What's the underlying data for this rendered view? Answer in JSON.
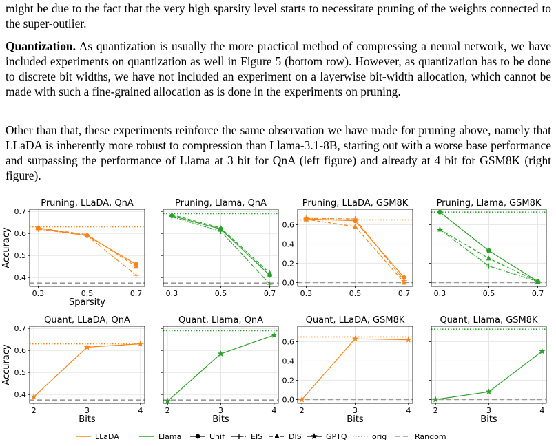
{
  "text": {
    "para0": "might be due to the fact that the very high sparsity level starts to necessitate pruning of the weights connected to the super-outlier.",
    "para1_heading": "Quantization.",
    "para1_body": " As quantization is usually the more practical method of compressing a neural network, we have included experiments on quantization as well in Figure 5 (bottom row). However, as quantization has to be done to discrete bit widths, we have not included an experiment on a layerwise bit-width allocation, which cannot be made with such a fine-grained allocation as is done in the experiments on pruning.",
    "para2": "Other than that, these experiments reinforce the same observation we have made for pruning above, namely that LLaDA is inherently more robust to compression than Llama-3.1-8B, starting out with a worse base performance and surpassing the performance of Llama at 3 bit for QnA (left figure) and already at 4 bit for GSM8K (right figure)."
  },
  "colors": {
    "llada": "#f58518",
    "llama": "#2ca02c",
    "random": "#999999",
    "grid": "#e6e6e6"
  },
  "legend": [
    {
      "label": "LLaDA",
      "kind": "line",
      "color": "#f58518"
    },
    {
      "label": "Llama",
      "kind": "line",
      "color": "#2ca02c"
    },
    {
      "label": "Unif",
      "kind": "marker",
      "marker": "circle",
      "dash": "solid"
    },
    {
      "label": "EIS",
      "kind": "marker",
      "marker": "plus",
      "dash": "dashdot"
    },
    {
      "label": "DIS",
      "kind": "marker",
      "marker": "triangle",
      "dash": "dashed"
    },
    {
      "label": "GPTQ",
      "kind": "marker",
      "marker": "star",
      "dash": "solid"
    },
    {
      "label": "orig",
      "kind": "dotted"
    },
    {
      "label": "Random",
      "kind": "random"
    }
  ],
  "chart_data": [
    {
      "type": "line",
      "title": "Pruning, LLaDA, QnA",
      "xlabel": "Sparsity",
      "ylabel": "Accuracy",
      "xlim": [
        0.265,
        0.735
      ],
      "ylim": [
        0.36,
        0.71
      ],
      "xticks": [
        0.3,
        0.5,
        0.7
      ],
      "xticklabels": [
        "0.3",
        "0.5",
        "0.7"
      ],
      "yticks": [
        0.4,
        0.5,
        0.6,
        0.7
      ],
      "yticklabels": [
        "0.4",
        "0.5",
        "0.6",
        "0.7"
      ],
      "model": "llada",
      "orig": 0.63,
      "random": 0.375,
      "series": [
        {
          "name": "Unif",
          "marker": "circle",
          "dash": "solid",
          "x": [
            0.3,
            0.5,
            0.7
          ],
          "y": [
            0.625,
            0.59,
            0.46
          ]
        },
        {
          "name": "EIS",
          "marker": "plus",
          "dash": "dashdot",
          "x": [
            0.3,
            0.5,
            0.7
          ],
          "y": [
            0.62,
            0.59,
            0.41
          ]
        },
        {
          "name": "DIS",
          "marker": "triangle",
          "dash": "dashed",
          "x": [
            0.3,
            0.5,
            0.7
          ],
          "y": [
            0.625,
            0.595,
            0.45
          ]
        }
      ]
    },
    {
      "type": "line",
      "title": "Pruning, Llama, QnA",
      "xlabel": "",
      "ylabel": "",
      "xlim": [
        0.265,
        0.735
      ],
      "ylim": [
        0.36,
        0.71
      ],
      "xticks": [
        0.3,
        0.5,
        0.7
      ],
      "xticklabels": [
        "0.3",
        "0.5",
        "0.7"
      ],
      "yticks": [
        0.4,
        0.5,
        0.6,
        0.7
      ],
      "yticklabels": [],
      "model": "llama",
      "orig": 0.69,
      "random": 0.375,
      "series": [
        {
          "name": "Unif",
          "marker": "circle",
          "dash": "solid",
          "x": [
            0.3,
            0.5,
            0.7
          ],
          "y": [
            0.68,
            0.62,
            0.41
          ]
        },
        {
          "name": "EIS",
          "marker": "plus",
          "dash": "dashdot",
          "x": [
            0.3,
            0.5,
            0.7
          ],
          "y": [
            0.675,
            0.61,
            0.37
          ]
        },
        {
          "name": "DIS",
          "marker": "triangle",
          "dash": "dashed",
          "x": [
            0.3,
            0.5,
            0.7
          ],
          "y": [
            0.685,
            0.625,
            0.42
          ]
        }
      ]
    },
    {
      "type": "line",
      "title": "Pruning, LLaDA, GSM8K",
      "xlabel": "",
      "ylabel": "",
      "xlim": [
        0.265,
        0.735
      ],
      "ylim": [
        -0.04,
        0.76
      ],
      "xticks": [
        0.3,
        0.5,
        0.7
      ],
      "xticklabels": [
        "0.3",
        "0.5",
        "0.7"
      ],
      "yticks": [
        0.0,
        0.2,
        0.4,
        0.6
      ],
      "yticklabels": [
        "0.0",
        "0.2",
        "0.4",
        "0.6"
      ],
      "model": "llada",
      "orig": 0.65,
      "random": 0.0,
      "series": [
        {
          "name": "Unif",
          "marker": "circle",
          "dash": "solid",
          "x": [
            0.3,
            0.5,
            0.7
          ],
          "y": [
            0.66,
            0.64,
            0.05
          ]
        },
        {
          "name": "EIS",
          "marker": "plus",
          "dash": "dashdot",
          "x": [
            0.3,
            0.5,
            0.7
          ],
          "y": [
            0.665,
            0.66,
            0.02
          ]
        },
        {
          "name": "DIS",
          "marker": "triangle",
          "dash": "dashed",
          "x": [
            0.3,
            0.5,
            0.7
          ],
          "y": [
            0.655,
            0.58,
            0.0
          ]
        }
      ]
    },
    {
      "type": "line",
      "title": "Pruning, Llama, GSM8K",
      "xlabel": "",
      "ylabel": "",
      "xlim": [
        0.265,
        0.735
      ],
      "ylim": [
        -0.04,
        0.76
      ],
      "xticks": [
        0.3,
        0.5,
        0.7
      ],
      "xticklabels": [
        "0.3",
        "0.5",
        "0.7"
      ],
      "yticks": [
        0.0,
        0.2,
        0.4,
        0.6
      ],
      "yticklabels": [],
      "model": "llama",
      "orig": 0.73,
      "random": 0.0,
      "series": [
        {
          "name": "Unif",
          "marker": "circle",
          "dash": "solid",
          "x": [
            0.3,
            0.5,
            0.7
          ],
          "y": [
            0.73,
            0.33,
            0.01
          ]
        },
        {
          "name": "EIS",
          "marker": "plus",
          "dash": "dashdot",
          "x": [
            0.3,
            0.5,
            0.7
          ],
          "y": [
            0.55,
            0.17,
            0.01
          ]
        },
        {
          "name": "DIS",
          "marker": "triangle",
          "dash": "dashed",
          "x": [
            0.3,
            0.5,
            0.7
          ],
          "y": [
            0.55,
            0.25,
            0.01
          ]
        }
      ]
    },
    {
      "type": "line",
      "title": "Quant, LLaDA, QnA",
      "xlabel": "Bits",
      "ylabel": "Accuracy",
      "xlim": [
        1.92,
        4.08
      ],
      "ylim": [
        0.36,
        0.71
      ],
      "xticks": [
        2,
        3,
        4
      ],
      "xticklabels": [
        "2",
        "3",
        "4"
      ],
      "yticks": [
        0.4,
        0.5,
        0.6,
        0.7
      ],
      "yticklabels": [
        "0.4",
        "0.5",
        "0.6",
        "0.7"
      ],
      "model": "llada",
      "orig": 0.63,
      "random": 0.375,
      "series": [
        {
          "name": "GPTQ",
          "marker": "star",
          "dash": "solid",
          "x": [
            2,
            3,
            4
          ],
          "y": [
            0.39,
            0.615,
            0.63
          ]
        }
      ]
    },
    {
      "type": "line",
      "title": "Quant, Llama, QnA",
      "xlabel": "Bits",
      "ylabel": "",
      "xlim": [
        1.92,
        4.08
      ],
      "ylim": [
        0.36,
        0.71
      ],
      "xticks": [
        2,
        3,
        4
      ],
      "xticklabels": [
        "2",
        "3",
        "4"
      ],
      "yticks": [
        0.4,
        0.5,
        0.6,
        0.7
      ],
      "yticklabels": [],
      "model": "llama",
      "orig": 0.69,
      "random": 0.375,
      "series": [
        {
          "name": "GPTQ",
          "marker": "star",
          "dash": "solid",
          "x": [
            2,
            3,
            4
          ],
          "y": [
            0.37,
            0.585,
            0.67
          ]
        }
      ]
    },
    {
      "type": "line",
      "title": "Quant, LLaDA, GSM8K",
      "xlabel": "Bits",
      "ylabel": "",
      "xlim": [
        1.92,
        4.08
      ],
      "ylim": [
        -0.04,
        0.76
      ],
      "xticks": [
        2,
        3,
        4
      ],
      "xticklabels": [
        "2",
        "3",
        "4"
      ],
      "yticks": [
        0.0,
        0.2,
        0.4,
        0.6
      ],
      "yticklabels": [
        "0.0",
        "0.2",
        "0.4",
        "0.6"
      ],
      "model": "llada",
      "orig": 0.65,
      "random": 0.0,
      "series": [
        {
          "name": "GPTQ",
          "marker": "star",
          "dash": "solid",
          "x": [
            2,
            3,
            4
          ],
          "y": [
            0.0,
            0.63,
            0.62
          ]
        }
      ]
    },
    {
      "type": "line",
      "title": "Quant, Llama, GSM8K",
      "xlabel": "Bits",
      "ylabel": "",
      "xlim": [
        1.92,
        4.08
      ],
      "ylim": [
        -0.04,
        0.76
      ],
      "xticks": [
        2,
        3,
        4
      ],
      "xticklabels": [
        "2",
        "3",
        "4"
      ],
      "yticks": [
        0.0,
        0.2,
        0.4,
        0.6
      ],
      "yticklabels": [],
      "model": "llama",
      "orig": 0.73,
      "random": 0.0,
      "series": [
        {
          "name": "GPTQ",
          "marker": "star",
          "dash": "solid",
          "x": [
            2,
            3,
            4
          ],
          "y": [
            0.0,
            0.08,
            0.5
          ]
        }
      ]
    }
  ]
}
